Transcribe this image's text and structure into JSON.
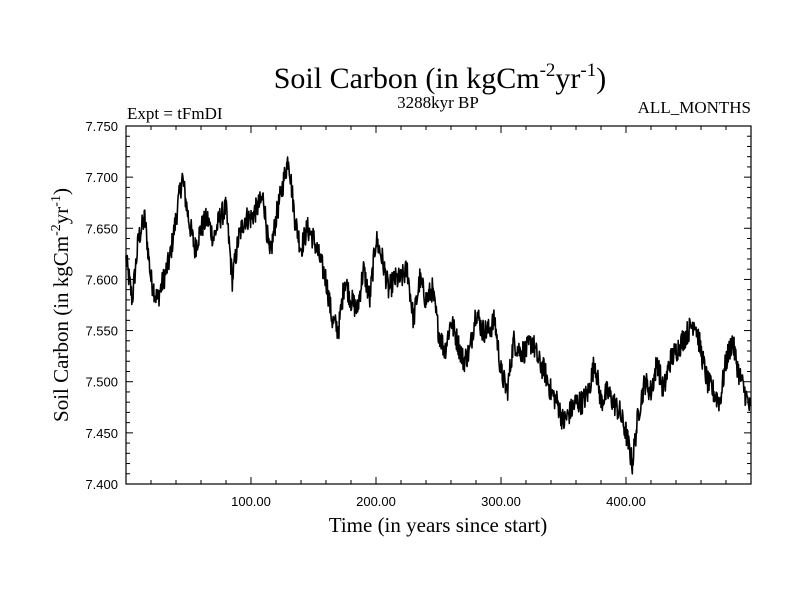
{
  "chart_data": {
    "type": "line",
    "title": {
      "prefix": "Soil Carbon (in kgCm",
      "sup1": "-2",
      "mid": "yr",
      "sup2": "-1",
      "suffix": ")"
    },
    "left_label": "Expt = tFmDI",
    "center_label": "3288kyr BP",
    "right_label": "ALL_MONTHS",
    "xlabel": "Time (in years since start)",
    "ylabel": {
      "prefix": "Soil Carbon (in kgCm",
      "sup1": "-2",
      "mid": "yr",
      "sup2": "-1",
      "suffix": ")"
    },
    "xlim": [
      0,
      500
    ],
    "ylim": [
      7.4,
      7.75
    ],
    "x_ticks": [
      100,
      200,
      300,
      400
    ],
    "x_tick_labels": [
      "100.00",
      "200.00",
      "300.00",
      "400.00"
    ],
    "y_ticks": [
      7.4,
      7.45,
      7.5,
      7.55,
      7.6,
      7.65,
      7.7,
      7.75
    ],
    "y_tick_labels": [
      "7.400",
      "7.450",
      "7.500",
      "7.550",
      "7.600",
      "7.650",
      "7.700",
      "7.750"
    ],
    "series": [
      {
        "name": "Soil Carbon",
        "color": "#000000",
        "x": [
          0,
          5,
          10,
          15,
          20,
          25,
          30,
          35,
          40,
          45,
          50,
          55,
          60,
          65,
          70,
          75,
          80,
          85,
          90,
          95,
          100,
          105,
          110,
          115,
          120,
          125,
          130,
          135,
          140,
          145,
          150,
          155,
          160,
          165,
          170,
          175,
          180,
          185,
          190,
          195,
          200,
          205,
          210,
          215,
          220,
          225,
          230,
          235,
          240,
          245,
          250,
          255,
          260,
          265,
          270,
          275,
          280,
          285,
          290,
          295,
          300,
          305,
          310,
          315,
          320,
          325,
          330,
          335,
          340,
          345,
          350,
          355,
          360,
          365,
          370,
          375,
          380,
          385,
          390,
          395,
          400,
          405,
          410,
          415,
          420,
          425,
          430,
          435,
          440,
          445,
          450,
          455,
          460,
          465,
          470,
          475,
          480,
          485,
          490,
          495,
          500
        ],
        "values": [
          7.62,
          7.58,
          7.64,
          7.66,
          7.6,
          7.58,
          7.6,
          7.62,
          7.66,
          7.7,
          7.66,
          7.63,
          7.65,
          7.66,
          7.64,
          7.66,
          7.67,
          7.6,
          7.64,
          7.66,
          7.66,
          7.67,
          7.68,
          7.62,
          7.66,
          7.69,
          7.72,
          7.66,
          7.63,
          7.65,
          7.64,
          7.62,
          7.6,
          7.56,
          7.55,
          7.6,
          7.58,
          7.57,
          7.61,
          7.58,
          7.64,
          7.62,
          7.59,
          7.6,
          7.6,
          7.61,
          7.56,
          7.6,
          7.58,
          7.59,
          7.55,
          7.53,
          7.56,
          7.54,
          7.52,
          7.53,
          7.57,
          7.55,
          7.55,
          7.56,
          7.51,
          7.49,
          7.54,
          7.53,
          7.53,
          7.54,
          7.52,
          7.51,
          7.49,
          7.48,
          7.46,
          7.47,
          7.48,
          7.48,
          7.49,
          7.52,
          7.48,
          7.49,
          7.48,
          7.47,
          7.45,
          7.42,
          7.47,
          7.5,
          7.49,
          7.52,
          7.49,
          7.52,
          7.53,
          7.54,
          7.55,
          7.56,
          7.53,
          7.5,
          7.49,
          7.48,
          7.52,
          7.54,
          7.51,
          7.49,
          7.47
        ]
      }
    ]
  }
}
